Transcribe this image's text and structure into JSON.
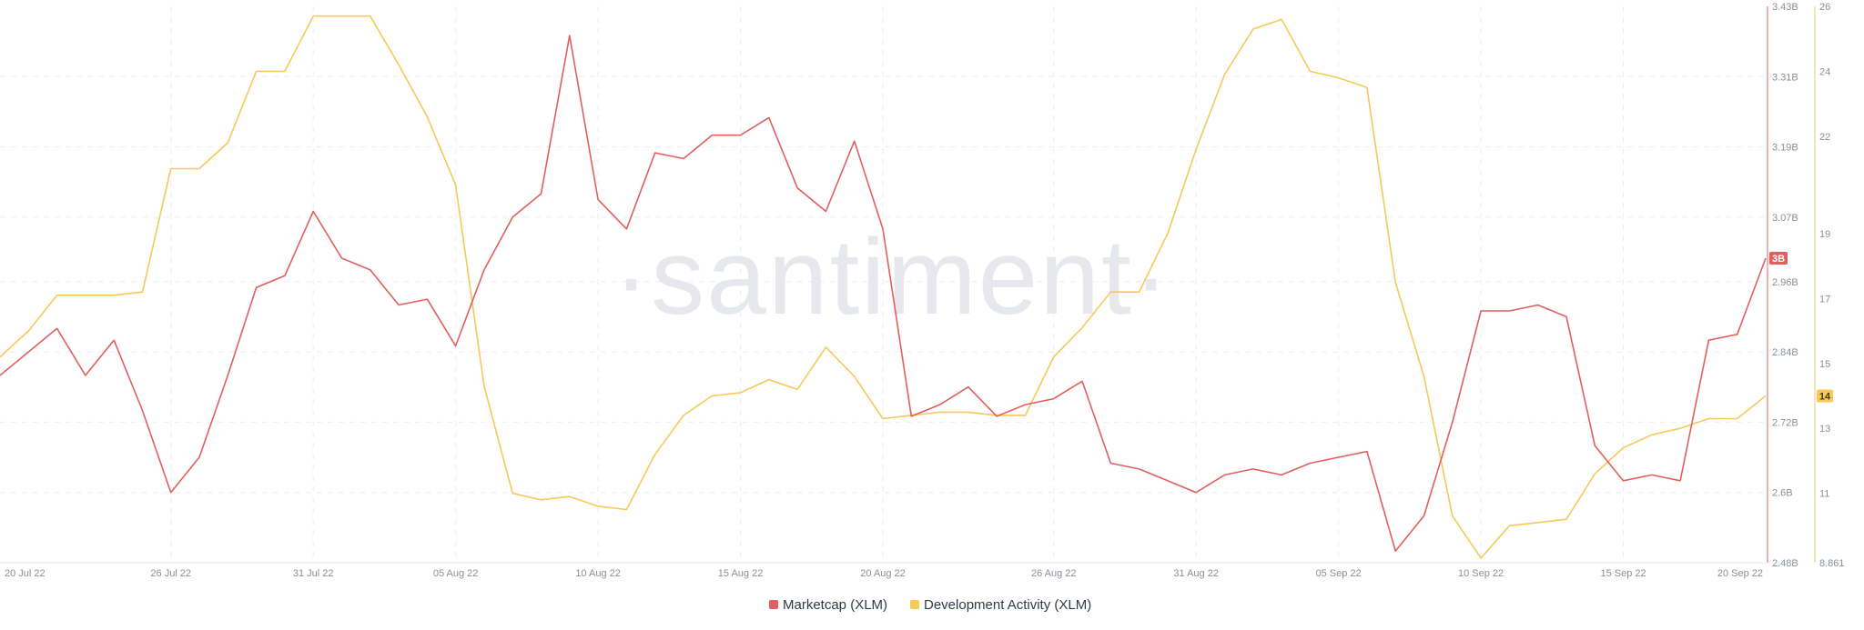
{
  "watermark": "·santiment·",
  "chart_data": {
    "type": "line",
    "title": "",
    "xlabel": "",
    "ylabel": "",
    "x_ticks": [
      "20 Jul 22",
      "26 Jul 22",
      "31 Jul 22",
      "05 Aug 22",
      "10 Aug 22",
      "15 Aug 22",
      "20 Aug 22",
      "26 Aug 22",
      "31 Aug 22",
      "05 Sep 22",
      "10 Sep 22",
      "15 Sep 22",
      "20 Sep 22"
    ],
    "x_range": [
      "2022-07-20",
      "2022-09-20"
    ],
    "grid": true,
    "legend_position": "bottom-center",
    "axes": {
      "marketcap": {
        "side": "right-inner",
        "ylim": [
          2.48,
          3.43
        ],
        "ticks": [
          {
            "value": 3.43,
            "label": "3.43B"
          },
          {
            "value": 3.31,
            "label": "3.31B"
          },
          {
            "value": 3.19,
            "label": "3.19B"
          },
          {
            "value": 3.07,
            "label": "3.07B"
          },
          {
            "value": 2.96,
            "label": "2.96B"
          },
          {
            "value": 2.84,
            "label": "2.84B"
          },
          {
            "value": 2.72,
            "label": "2.72B"
          },
          {
            "value": 2.6,
            "label": "2.6B"
          },
          {
            "value": 2.48,
            "label": "2.48B"
          }
        ]
      },
      "dev": {
        "side": "right-outer",
        "ylim": [
          8.861,
          26
        ],
        "ticks": [
          {
            "value": 26,
            "label": "26"
          },
          {
            "value": 24,
            "label": "24"
          },
          {
            "value": 22,
            "label": "22"
          },
          {
            "value": 19,
            "label": "19"
          },
          {
            "value": 17,
            "label": "17"
          },
          {
            "value": 15,
            "label": "15"
          },
          {
            "value": 13,
            "label": "13"
          },
          {
            "value": 11,
            "label": "11"
          },
          {
            "value": 8.861,
            "label": "8.861"
          }
        ]
      }
    },
    "series": [
      {
        "name": "Marketcap (XLM)",
        "axis": "marketcap",
        "unit": "B",
        "color": "#e0605f",
        "last_value_label": "3B",
        "points": [
          [
            "2022-07-20",
            2.8
          ],
          [
            "2022-07-21",
            2.84
          ],
          [
            "2022-07-22",
            2.88
          ],
          [
            "2022-07-23",
            2.8
          ],
          [
            "2022-07-24",
            2.86
          ],
          [
            "2022-07-25",
            2.74
          ],
          [
            "2022-07-26",
            2.6
          ],
          [
            "2022-07-27",
            2.66
          ],
          [
            "2022-07-28",
            2.8
          ],
          [
            "2022-07-29",
            2.95
          ],
          [
            "2022-07-30",
            2.97
          ],
          [
            "2022-07-31",
            3.08
          ],
          [
            "2022-08-01",
            3.0
          ],
          [
            "2022-08-02",
            2.98
          ],
          [
            "2022-08-03",
            2.92
          ],
          [
            "2022-08-04",
            2.93
          ],
          [
            "2022-08-05",
            2.85
          ],
          [
            "2022-08-06",
            2.98
          ],
          [
            "2022-08-07",
            3.07
          ],
          [
            "2022-08-08",
            3.11
          ],
          [
            "2022-08-09",
            3.38
          ],
          [
            "2022-08-10",
            3.1
          ],
          [
            "2022-08-11",
            3.05
          ],
          [
            "2022-08-12",
            3.18
          ],
          [
            "2022-08-13",
            3.17
          ],
          [
            "2022-08-14",
            3.21
          ],
          [
            "2022-08-15",
            3.21
          ],
          [
            "2022-08-16",
            3.24
          ],
          [
            "2022-08-17",
            3.12
          ],
          [
            "2022-08-18",
            3.08
          ],
          [
            "2022-08-19",
            3.2
          ],
          [
            "2022-08-20",
            3.05
          ],
          [
            "2022-08-21",
            2.73
          ],
          [
            "2022-08-22",
            2.75
          ],
          [
            "2022-08-23",
            2.78
          ],
          [
            "2022-08-24",
            2.73
          ],
          [
            "2022-08-25",
            2.75
          ],
          [
            "2022-08-26",
            2.76
          ],
          [
            "2022-08-27",
            2.79
          ],
          [
            "2022-08-28",
            2.65
          ],
          [
            "2022-08-29",
            2.64
          ],
          [
            "2022-08-30",
            2.62
          ],
          [
            "2022-08-31",
            2.6
          ],
          [
            "2022-09-01",
            2.63
          ],
          [
            "2022-09-02",
            2.64
          ],
          [
            "2022-09-03",
            2.63
          ],
          [
            "2022-09-04",
            2.65
          ],
          [
            "2022-09-05",
            2.66
          ],
          [
            "2022-09-06",
            2.67
          ],
          [
            "2022-09-07",
            2.5
          ],
          [
            "2022-09-08",
            2.56
          ],
          [
            "2022-09-09",
            2.72
          ],
          [
            "2022-09-10",
            2.91
          ],
          [
            "2022-09-11",
            2.91
          ],
          [
            "2022-09-12",
            2.92
          ],
          [
            "2022-09-13",
            2.9
          ],
          [
            "2022-09-14",
            2.68
          ],
          [
            "2022-09-15",
            2.62
          ],
          [
            "2022-09-16",
            2.63
          ],
          [
            "2022-09-17",
            2.62
          ],
          [
            "2022-09-18",
            2.86
          ],
          [
            "2022-09-19",
            2.87
          ],
          [
            "2022-09-20",
            3.0
          ]
        ]
      },
      {
        "name": "Development Activity (XLM)",
        "axis": "dev",
        "color": "#f6c95a",
        "last_value_label": "14",
        "points": [
          [
            "2022-07-20",
            15.2
          ],
          [
            "2022-07-21",
            16.0
          ],
          [
            "2022-07-22",
            17.1
          ],
          [
            "2022-07-23",
            17.1
          ],
          [
            "2022-07-24",
            17.1
          ],
          [
            "2022-07-25",
            17.2
          ],
          [
            "2022-07-26",
            21.0
          ],
          [
            "2022-07-27",
            21.0
          ],
          [
            "2022-07-28",
            21.8
          ],
          [
            "2022-07-29",
            24.0
          ],
          [
            "2022-07-30",
            24.0
          ],
          [
            "2022-07-31",
            25.7
          ],
          [
            "2022-08-01",
            25.7
          ],
          [
            "2022-08-02",
            25.7
          ],
          [
            "2022-08-03",
            24.2
          ],
          [
            "2022-08-04",
            22.6
          ],
          [
            "2022-08-05",
            20.5
          ],
          [
            "2022-08-06",
            14.3
          ],
          [
            "2022-08-07",
            11.0
          ],
          [
            "2022-08-08",
            10.8
          ],
          [
            "2022-08-09",
            10.9
          ],
          [
            "2022-08-10",
            10.6
          ],
          [
            "2022-08-11",
            10.5
          ],
          [
            "2022-08-12",
            12.2
          ],
          [
            "2022-08-13",
            13.4
          ],
          [
            "2022-08-14",
            14.0
          ],
          [
            "2022-08-15",
            14.1
          ],
          [
            "2022-08-16",
            14.5
          ],
          [
            "2022-08-17",
            14.2
          ],
          [
            "2022-08-18",
            15.5
          ],
          [
            "2022-08-19",
            14.6
          ],
          [
            "2022-08-20",
            13.3
          ],
          [
            "2022-08-21",
            13.4
          ],
          [
            "2022-08-22",
            13.5
          ],
          [
            "2022-08-23",
            13.5
          ],
          [
            "2022-08-24",
            13.4
          ],
          [
            "2022-08-25",
            13.4
          ],
          [
            "2022-08-26",
            15.2
          ],
          [
            "2022-08-27",
            16.1
          ],
          [
            "2022-08-28",
            17.2
          ],
          [
            "2022-08-29",
            17.2
          ],
          [
            "2022-08-30",
            19.0
          ],
          [
            "2022-08-31",
            21.6
          ],
          [
            "2022-09-01",
            23.9
          ],
          [
            "2022-09-02",
            25.3
          ],
          [
            "2022-09-03",
            25.6
          ],
          [
            "2022-09-04",
            24.0
          ],
          [
            "2022-09-05",
            23.8
          ],
          [
            "2022-09-06",
            23.5
          ],
          [
            "2022-09-07",
            17.5
          ],
          [
            "2022-09-08",
            14.6
          ],
          [
            "2022-09-09",
            10.3
          ],
          [
            "2022-09-10",
            9.0
          ],
          [
            "2022-09-11",
            10.0
          ],
          [
            "2022-09-12",
            10.1
          ],
          [
            "2022-09-13",
            10.2
          ],
          [
            "2022-09-14",
            11.6
          ],
          [
            "2022-09-15",
            12.4
          ],
          [
            "2022-09-16",
            12.8
          ],
          [
            "2022-09-17",
            13.0
          ],
          [
            "2022-09-18",
            13.3
          ],
          [
            "2022-09-19",
            13.3
          ],
          [
            "2022-09-20",
            14.0
          ]
        ]
      }
    ]
  }
}
